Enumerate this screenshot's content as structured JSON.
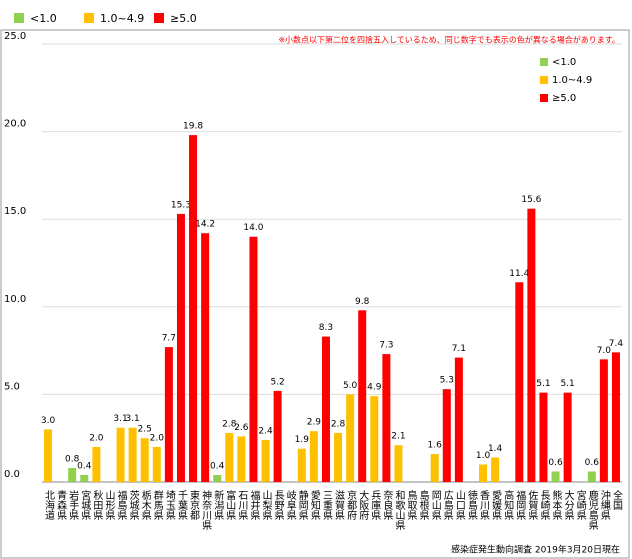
{
  "chart_data": {
    "type": "bar",
    "note": "※小数点以下第二位を四捨五入しているため、同じ数字でも表示の色が異なる場合があります。",
    "source": "感染症発生動向調査 2019年3月20日現在",
    "legend": [
      {
        "label": "<1.0",
        "color": "#92d050"
      },
      {
        "label": "1.0~4.9",
        "color": "#ffc000"
      },
      {
        "label": "≥5.0",
        "color": "#ff0000"
      }
    ],
    "categories": [
      "北海道",
      "青森県",
      "岩手県",
      "宮城県",
      "秋田県",
      "山形県",
      "福島県",
      "茨城県",
      "栃木県",
      "群馬県",
      "埼玉県",
      "千葉県",
      "東京都",
      "神奈川県",
      "新潟県",
      "富山県",
      "石川県",
      "福井県",
      "山梨県",
      "長野県",
      "岐阜県",
      "静岡県",
      "愛知県",
      "三重県",
      "滋賀県",
      "京都府",
      "大阪府",
      "兵庫県",
      "奈良県",
      "和歌山県",
      "鳥取県",
      "島根県",
      "岡山県",
      "広島県",
      "山口県",
      "徳島県",
      "香川県",
      "愛媛県",
      "高知県",
      "福岡県",
      "佐賀県",
      "長崎県",
      "熊本県",
      "大分県",
      "宮崎県",
      "鹿児島県",
      "沖縄県",
      "全国"
    ],
    "values": [
      3.0,
      null,
      0.8,
      0.4,
      2.0,
      null,
      3.1,
      3.1,
      2.5,
      2.0,
      7.7,
      15.3,
      19.8,
      14.2,
      0.4,
      2.8,
      2.6,
      14.0,
      2.4,
      5.2,
      null,
      1.9,
      2.9,
      8.3,
      2.8,
      5.0,
      9.8,
      4.9,
      7.3,
      2.1,
      null,
      null,
      1.6,
      5.3,
      7.1,
      null,
      1.0,
      1.4,
      null,
      11.4,
      15.6,
      5.1,
      0.6,
      5.1,
      null,
      0.6,
      7.0,
      7.4
    ],
    "value_labels": [
      "3.0",
      null,
      "0.8",
      "0.4",
      "2.0",
      null,
      "3.1",
      "3.1",
      "2.5",
      "2.0",
      "7.7",
      "15.3",
      "19.8",
      "14.2",
      "0.4",
      "2.8",
      "2.6",
      "14.0",
      "2.4",
      "5.2",
      null,
      "1.9",
      "2.9",
      "8.3",
      "2.8",
      "5.0",
      "9.8",
      "4.9",
      "7.3",
      "2.1",
      null,
      null,
      "1.6",
      "5.3",
      "7.1",
      null,
      "1.0",
      "1.4",
      null,
      "11.4",
      "15.6",
      "5.1",
      "0.6",
      "5.1",
      null,
      "0.6",
      "7.0",
      "7.4"
    ],
    "colors": [
      "#ffc000",
      null,
      "#92d050",
      "#92d050",
      "#ffc000",
      null,
      "#ffc000",
      "#ffc000",
      "#ffc000",
      "#ffc000",
      "#ff0000",
      "#ff0000",
      "#ff0000",
      "#ff0000",
      "#92d050",
      "#ffc000",
      "#ffc000",
      "#ff0000",
      "#ffc000",
      "#ff0000",
      null,
      "#ffc000",
      "#ffc000",
      "#ff0000",
      "#ffc000",
      "#ffc000",
      "#ff0000",
      "#ffc000",
      "#ff0000",
      "#ffc000",
      null,
      null,
      "#ffc000",
      "#ff0000",
      "#ff0000",
      null,
      "#ffc000",
      "#ffc000",
      null,
      "#ff0000",
      "#ff0000",
      "#ff0000",
      "#92d050",
      "#ff0000",
      null,
      "#92d050",
      "#ff0000",
      "#ff0000"
    ],
    "ylim": [
      0,
      25
    ],
    "yticks": [
      {
        "value": 0,
        "label": "0.0"
      },
      {
        "value": 5,
        "label": "5.0"
      },
      {
        "value": 10,
        "label": "10.0"
      },
      {
        "value": 15,
        "label": "15.0"
      },
      {
        "value": 20,
        "label": "20.0"
      },
      {
        "value": 25,
        "label": "25.0"
      }
    ],
    "grid": true
  }
}
